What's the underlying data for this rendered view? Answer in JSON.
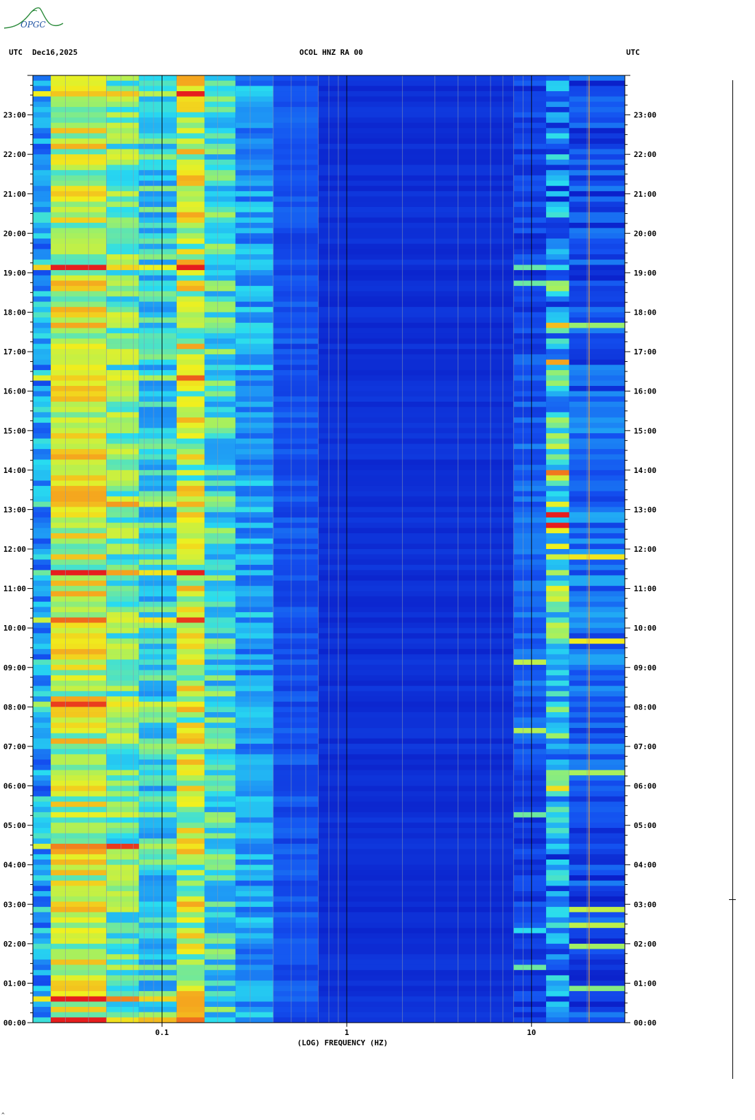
{
  "header": {
    "left_tz": "UTC",
    "date": "Dec16,2025",
    "station": "OCOL HNZ RA 00",
    "right_tz": "UTC"
  },
  "logo": {
    "text": "OPGC"
  },
  "footer_mark": "^",
  "chart_data": {
    "type": "heatmap",
    "title": "OCOL HNZ RA 00",
    "xlabel": "(LOG) FREQUENCY (HZ)",
    "ylabel": "UTC",
    "x_scale": "log",
    "xlim": [
      0.02,
      32
    ],
    "x_ticks": [
      {
        "value": 0.1,
        "label": "0.1"
      },
      {
        "value": 1,
        "label": "1"
      },
      {
        "value": 10,
        "label": "10"
      }
    ],
    "ylim_hours": [
      0,
      24
    ],
    "y_ticks": [
      {
        "hour": 0,
        "label": "00:00"
      },
      {
        "hour": 1,
        "label": "01:00"
      },
      {
        "hour": 2,
        "label": "02:00"
      },
      {
        "hour": 3,
        "label": "03:00"
      },
      {
        "hour": 4,
        "label": "04:00"
      },
      {
        "hour": 5,
        "label": "05:00"
      },
      {
        "hour": 6,
        "label": "06:00"
      },
      {
        "hour": 7,
        "label": "07:00"
      },
      {
        "hour": 8,
        "label": "08:00"
      },
      {
        "hour": 9,
        "label": "09:00"
      },
      {
        "hour": 10,
        "label": "10:00"
      },
      {
        "hour": 11,
        "label": "11:00"
      },
      {
        "hour": 12,
        "label": "12:00"
      },
      {
        "hour": 13,
        "label": "13:00"
      },
      {
        "hour": 14,
        "label": "14:00"
      },
      {
        "hour": 15,
        "label": "15:00"
      },
      {
        "hour": 16,
        "label": "16:00"
      },
      {
        "hour": 17,
        "label": "17:00"
      },
      {
        "hour": 18,
        "label": "18:00"
      },
      {
        "hour": 19,
        "label": "19:00"
      },
      {
        "hour": 20,
        "label": "20:00"
      },
      {
        "hour": 21,
        "label": "21:00"
      },
      {
        "hour": 22,
        "label": "22:00"
      },
      {
        "hour": 23,
        "label": "23:00"
      }
    ],
    "colormap": [
      "#0a1ec8",
      "#1450f0",
      "#1e96f5",
      "#28dcf0",
      "#a0f064",
      "#f0f01e",
      "#f5a01e",
      "#e61e1e"
    ],
    "frequency_bands": [
      {
        "f_lo": 0.02,
        "f_hi": 0.025,
        "level": 0.3,
        "var": 0.18
      },
      {
        "f_lo": 0.025,
        "f_hi": 0.05,
        "level": 0.66,
        "var": 0.2
      },
      {
        "f_lo": 0.05,
        "f_hi": 0.075,
        "level": 0.52,
        "var": 0.16
      },
      {
        "f_lo": 0.075,
        "f_hi": 0.12,
        "level": 0.42,
        "var": 0.16
      },
      {
        "f_lo": 0.12,
        "f_hi": 0.17,
        "level": 0.64,
        "var": 0.22
      },
      {
        "f_lo": 0.17,
        "f_hi": 0.25,
        "level": 0.44,
        "var": 0.16
      },
      {
        "f_lo": 0.25,
        "f_hi": 0.4,
        "level": 0.3,
        "var": 0.14
      },
      {
        "f_lo": 0.4,
        "f_hi": 0.7,
        "level": 0.14,
        "var": 0.06
      },
      {
        "f_lo": 0.7,
        "f_hi": 8.0,
        "level": 0.05,
        "var": 0.03
      },
      {
        "f_lo": 8.0,
        "f_hi": 12.0,
        "level": 0.1,
        "var": 0.08
      },
      {
        "f_lo": 12.0,
        "f_hi": 16.0,
        "level": 0.24,
        "var": 0.24
      },
      {
        "f_lo": 16.0,
        "f_hi": 32.0,
        "level": 0.12,
        "var": 0.12
      }
    ],
    "grid_lines_hz": [
      0.03,
      0.04,
      0.05,
      0.06,
      0.07,
      0.08,
      0.09,
      0.1,
      0.2,
      0.3,
      0.4,
      0.5,
      0.6,
      0.7,
      0.8,
      0.9,
      1,
      2,
      3,
      4,
      5,
      6,
      7,
      8,
      9,
      10,
      20
    ],
    "strong_grid_lines_hz": [
      0.1,
      1,
      10
    ],
    "narrowband_line_hz": 20.5
  }
}
